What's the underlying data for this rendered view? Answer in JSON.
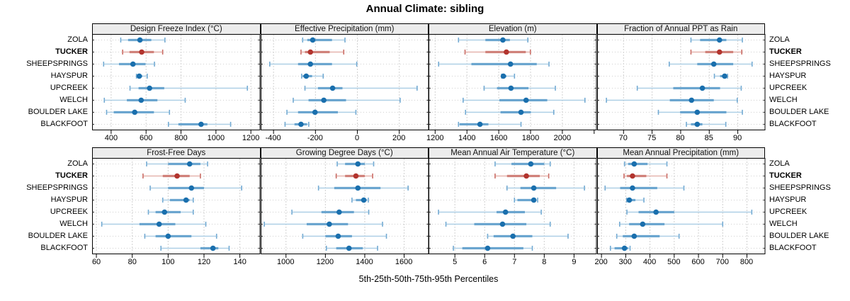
{
  "title": "Annual Climate: sibling",
  "axis_caption": "5th-25th-50th-75th-95th Percentiles",
  "percentiles": [
    "5th",
    "25th",
    "50th",
    "75th",
    "95th"
  ],
  "sites": [
    "ZOLA",
    "TUCKER",
    "SHEEPSPRINGS",
    "HAYSPUR",
    "UPCREEK",
    "WELCH",
    "BOULDER LAKE",
    "BLACKFOOT"
  ],
  "highlighted_site": "TUCKER",
  "colors": {
    "blue_dot": "#1a6fad",
    "blue_band": "#6aa5cf",
    "blue_whisker": "#aecfe6",
    "blue_cap": "#74abd3",
    "red_dot": "#b2342e",
    "red_band": "#d0817a",
    "red_whisker": "#e6b4ae",
    "red_cap": "#ca6d66",
    "gridline": "#d0d0d0",
    "strip_bg": "#ececec",
    "panel_border": "#000000"
  },
  "chart_data": [
    {
      "type": "percentile-dotplot",
      "row": 1,
      "col": 1,
      "title": "Design Freeze Index (°C)",
      "xlim": [
        295,
        1250
      ],
      "ticks": [
        400,
        600,
        800,
        1000,
        1200
      ],
      "tick_labels": [
        "400",
        "600",
        "800",
        "1000",
        "1200"
      ],
      "series": [
        {
          "site": "ZOLA",
          "values": [
            455,
            497,
            565,
            630,
            708
          ]
        },
        {
          "site": "TUCKER",
          "values": [
            466,
            505,
            575,
            645,
            695
          ]
        },
        {
          "site": "SHEEPSPRINGS",
          "values": [
            357,
            445,
            525,
            597,
            648
          ]
        },
        {
          "site": "HAYSPUR",
          "values": [
            545,
            552,
            561,
            578,
            607
          ]
        },
        {
          "site": "UPCREEK",
          "values": [
            508,
            557,
            620,
            704,
            1180
          ]
        },
        {
          "site": "WELCH",
          "values": [
            361,
            490,
            572,
            665,
            824
          ]
        },
        {
          "site": "BOULDER LAKE",
          "values": [
            374,
            415,
            535,
            645,
            734
          ]
        },
        {
          "site": "BLACKFOOT",
          "values": [
            728,
            785,
            915,
            951,
            1084
          ]
        }
      ]
    },
    {
      "type": "percentile-dotplot",
      "row": 1,
      "col": 2,
      "title": "Effective Precipitation (mm)",
      "xlim": [
        -458,
        338
      ],
      "ticks": [
        -400,
        -200,
        0,
        200
      ],
      "tick_labels": [
        "-400",
        "-200",
        "0",
        "200"
      ],
      "series": [
        {
          "site": "ZOLA",
          "values": [
            -261,
            -239,
            -213,
            -121,
            -59
          ]
        },
        {
          "site": "TUCKER",
          "values": [
            -269,
            -250,
            -224,
            -132,
            -65
          ]
        },
        {
          "site": "SHEEPSPRINGS",
          "values": [
            -418,
            -283,
            -224,
            -121,
            -3
          ]
        },
        {
          "site": "HAYSPUR",
          "values": [
            -266,
            -261,
            -244,
            -216,
            -163
          ]
        },
        {
          "site": "UPCREEK",
          "values": [
            -250,
            -188,
            -118,
            -71,
            285
          ]
        },
        {
          "site": "WELCH",
          "values": [
            -306,
            -233,
            -160,
            -54,
            204
          ]
        },
        {
          "site": "BOULDER LAKE",
          "values": [
            -336,
            -283,
            -202,
            -93,
            -7
          ]
        },
        {
          "site": "BLACKFOOT",
          "values": [
            -345,
            -300,
            -269,
            -240,
            -232
          ]
        }
      ]
    },
    {
      "type": "percentile-dotplot",
      "row": 1,
      "col": 3,
      "title": "Elevation (m)",
      "xlim": [
        1163,
        2212
      ],
      "ticks": [
        1200,
        1400,
        1600,
        1800,
        2000,
        2200
      ],
      "tick_labels": [
        "1200",
        "1400",
        "1600",
        "1800",
        "2000",
        ""
      ],
      "series": [
        {
          "site": "ZOLA",
          "values": [
            1347,
            1516,
            1626,
            1670,
            1783
          ]
        },
        {
          "site": "TUCKER",
          "values": [
            1388,
            1516,
            1648,
            1770,
            1799
          ]
        },
        {
          "site": "SHEEPSPRINGS",
          "values": [
            1222,
            1428,
            1674,
            1839,
            1916
          ]
        },
        {
          "site": "HAYSPUR",
          "values": [
            1618,
            1622,
            1629,
            1648,
            1699
          ]
        },
        {
          "site": "UPCREEK",
          "values": [
            1508,
            1589,
            1677,
            1787,
            1956
          ]
        },
        {
          "site": "WELCH",
          "values": [
            1376,
            1604,
            1772,
            1905,
            2142
          ]
        },
        {
          "site": "BOULDER LAKE",
          "values": [
            1391,
            1611,
            1740,
            1802,
            1946
          ]
        },
        {
          "site": "BLACKFOOT",
          "values": [
            1347,
            1354,
            1482,
            1535,
            1740
          ]
        }
      ]
    },
    {
      "type": "percentile-dotplot",
      "row": 1,
      "col": 4,
      "title": "Fraction of Annual PPT as Rain",
      "xlim": [
        65.5,
        94.7
      ],
      "ticks": [
        70,
        75,
        80,
        85,
        90
      ],
      "tick_labels": [
        "70",
        "75",
        "80",
        "85",
        "90"
      ],
      "series": [
        {
          "site": "ZOLA",
          "values": [
            81.8,
            83.4,
            86.8,
            88.0,
            90.8
          ]
        },
        {
          "site": "TUCKER",
          "values": [
            81.8,
            84.3,
            86.8,
            89.2,
            90.7
          ]
        },
        {
          "site": "SHEEPSPRINGS",
          "values": [
            78.0,
            82.9,
            85.8,
            89.2,
            92.5
          ]
        },
        {
          "site": "HAYSPUR",
          "values": [
            85.9,
            86.9,
            87.7,
            88.0,
            88.2
          ]
        },
        {
          "site": "UPCREEK",
          "values": [
            72.4,
            78.7,
            83.8,
            86.9,
            90.6
          ]
        },
        {
          "site": "WELCH",
          "values": [
            67.0,
            78.1,
            81.9,
            85.8,
            89.9
          ]
        },
        {
          "site": "BOULDER LAKE",
          "values": [
            76.1,
            79.9,
            82.9,
            88.0,
            90.8
          ]
        },
        {
          "site": "BLACKFOOT",
          "values": [
            81.0,
            81.8,
            82.9,
            83.8,
            87.9
          ]
        }
      ]
    },
    {
      "type": "percentile-dotplot",
      "row": 2,
      "col": 1,
      "title": "Frost-Free Days",
      "xlim": [
        58,
        151
      ],
      "ticks": [
        60,
        80,
        100,
        120,
        140
      ],
      "tick_labels": [
        "60",
        "80",
        "100",
        "120",
        "140"
      ],
      "series": [
        {
          "site": "ZOLA",
          "values": [
            88,
            100,
            112,
            118,
            122
          ]
        },
        {
          "site": "TUCKER",
          "values": [
            86,
            97,
            105,
            112,
            118
          ]
        },
        {
          "site": "SHEEPSPRINGS",
          "values": [
            90,
            100,
            113,
            120,
            141
          ]
        },
        {
          "site": "HAYSPUR",
          "values": [
            97,
            101,
            110,
            112,
            114
          ]
        },
        {
          "site": "UPCREEK",
          "values": [
            89,
            93,
            98,
            107,
            114
          ]
        },
        {
          "site": "WELCH",
          "values": [
            63,
            84,
            95,
            104,
            121
          ]
        },
        {
          "site": "BOULDER LAKE",
          "values": [
            87,
            93,
            100,
            113,
            127
          ]
        },
        {
          "site": "BLACKFOOT",
          "values": [
            96,
            118,
            125,
            128,
            134
          ]
        }
      ]
    },
    {
      "type": "percentile-dotplot",
      "row": 2,
      "col": 2,
      "title": "Growing Degree Days (°C)",
      "xlim": [
        875,
        1722
      ],
      "ticks": [
        1000,
        1200,
        1400,
        1600
      ],
      "tick_labels": [
        "1000",
        "1200",
        "1400",
        "1600"
      ],
      "series": [
        {
          "site": "ZOLA",
          "values": [
            1260,
            1300,
            1365,
            1400,
            1445
          ]
        },
        {
          "site": "TUCKER",
          "values": [
            1255,
            1300,
            1355,
            1400,
            1440
          ]
        },
        {
          "site": "SHEEPSPRINGS",
          "values": [
            1165,
            1245,
            1365,
            1480,
            1620
          ]
        },
        {
          "site": "HAYSPUR",
          "values": [
            1335,
            1355,
            1395,
            1410,
            1418
          ]
        },
        {
          "site": "UPCREEK",
          "values": [
            1030,
            1180,
            1270,
            1345,
            1420
          ]
        },
        {
          "site": "WELCH",
          "values": [
            890,
            1105,
            1220,
            1315,
            1490
          ]
        },
        {
          "site": "BOULDER LAKE",
          "values": [
            1085,
            1200,
            1265,
            1335,
            1510
          ]
        },
        {
          "site": "BLACKFOOT",
          "values": [
            1205,
            1255,
            1320,
            1390,
            1465
          ]
        }
      ]
    },
    {
      "type": "percentile-dotplot",
      "row": 2,
      "col": 3,
      "title": "Mean Annual Air Temperature (°C)",
      "xlim": [
        4.14,
        9.74
      ],
      "ticks": [
        5,
        6,
        7,
        8,
        9
      ],
      "tick_labels": [
        "5",
        "6",
        "7",
        "8",
        "9"
      ],
      "series": [
        {
          "site": "ZOLA",
          "values": [
            6.35,
            6.9,
            7.55,
            8.0,
            8.2
          ]
        },
        {
          "site": "TUCKER",
          "values": [
            6.35,
            6.75,
            7.4,
            7.85,
            8.15
          ]
        },
        {
          "site": "SHEEPSPRINGS",
          "values": [
            6.75,
            7.2,
            7.65,
            8.4,
            9.35
          ]
        },
        {
          "site": "HAYSPUR",
          "values": [
            7.0,
            7.1,
            7.65,
            7.72,
            7.78
          ]
        },
        {
          "site": "UPCREEK",
          "values": [
            4.45,
            6.4,
            6.7,
            7.35,
            7.9
          ]
        },
        {
          "site": "WELCH",
          "values": [
            4.7,
            5.65,
            6.6,
            7.4,
            8.2
          ]
        },
        {
          "site": "BOULDER LAKE",
          "values": [
            6.1,
            6.3,
            6.95,
            7.6,
            8.8
          ]
        },
        {
          "site": "BLACKFOOT",
          "values": [
            4.95,
            5.25,
            6.1,
            7.3,
            7.6
          ]
        }
      ]
    },
    {
      "type": "percentile-dotplot",
      "row": 2,
      "col": 4,
      "title": "Mean Annual Precipitation (mm)",
      "xlim": [
        185,
        873
      ],
      "ticks": [
        200,
        300,
        400,
        500,
        600,
        700,
        800
      ],
      "tick_labels": [
        "200",
        "300",
        "400",
        "500",
        "600",
        "700",
        "800"
      ],
      "series": [
        {
          "site": "ZOLA",
          "values": [
            295,
            310,
            335,
            390,
            470
          ]
        },
        {
          "site": "TUCKER",
          "values": [
            293,
            305,
            328,
            385,
            470
          ]
        },
        {
          "site": "SHEEPSPRINGS",
          "values": [
            215,
            277,
            328,
            430,
            540
          ]
        },
        {
          "site": "HAYSPUR",
          "values": [
            304,
            308,
            315,
            340,
            375
          ]
        },
        {
          "site": "UPCREEK",
          "values": [
            305,
            353,
            425,
            500,
            820
          ]
        },
        {
          "site": "WELCH",
          "values": [
            275,
            314,
            370,
            460,
            700
          ]
        },
        {
          "site": "BOULDER LAKE",
          "values": [
            263,
            288,
            335,
            440,
            520
          ]
        },
        {
          "site": "BLACKFOOT",
          "values": [
            237,
            254,
            295,
            310,
            318
          ]
        }
      ]
    }
  ]
}
